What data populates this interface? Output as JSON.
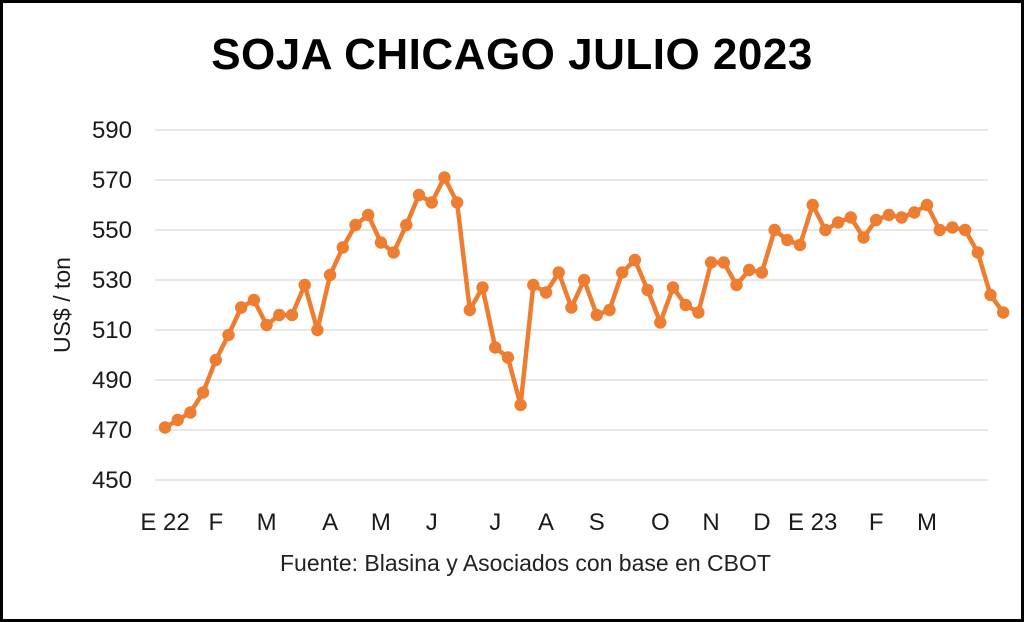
{
  "chart_data": {
    "type": "line",
    "title": "SOJA CHICAGO JULIO 2023",
    "ylabel": "US$ / ton",
    "xlabel": "",
    "source": "Fuente: Blasina y Asociados con base en CBOT",
    "ylim": [
      450,
      590
    ],
    "yticks": [
      450,
      470,
      490,
      510,
      530,
      550,
      570,
      590
    ],
    "grid": true,
    "color": "#ED7D31",
    "x_tick_labels": [
      {
        "label": "E 22",
        "index": 0
      },
      {
        "label": "F",
        "index": 4
      },
      {
        "label": "M",
        "index": 8
      },
      {
        "label": "A",
        "index": 13
      },
      {
        "label": "M",
        "index": 17
      },
      {
        "label": "J",
        "index": 21
      },
      {
        "label": "J",
        "index": 26
      },
      {
        "label": "A",
        "index": 30
      },
      {
        "label": "S",
        "index": 34
      },
      {
        "label": "O",
        "index": 39
      },
      {
        "label": "N",
        "index": 43
      },
      {
        "label": "D",
        "index": 47
      },
      {
        "label": "E 23",
        "index": 51
      },
      {
        "label": "F",
        "index": 56
      },
      {
        "label": "M",
        "index": 60
      }
    ],
    "series": [
      {
        "values": [
          471,
          474,
          477,
          485,
          498,
          508,
          519,
          522,
          512,
          516,
          516,
          528,
          510,
          532,
          543,
          552,
          556,
          545,
          541,
          552,
          564,
          561,
          571,
          561,
          518,
          527,
          503,
          499,
          480,
          528,
          525,
          533,
          519,
          530,
          516,
          518,
          533,
          538,
          526,
          513,
          527,
          520,
          517,
          537,
          537,
          528,
          534,
          533,
          550,
          546,
          544,
          560,
          550,
          553,
          555,
          547,
          554,
          556,
          555,
          557,
          560,
          550,
          551,
          550,
          541,
          524,
          517
        ]
      }
    ]
  }
}
